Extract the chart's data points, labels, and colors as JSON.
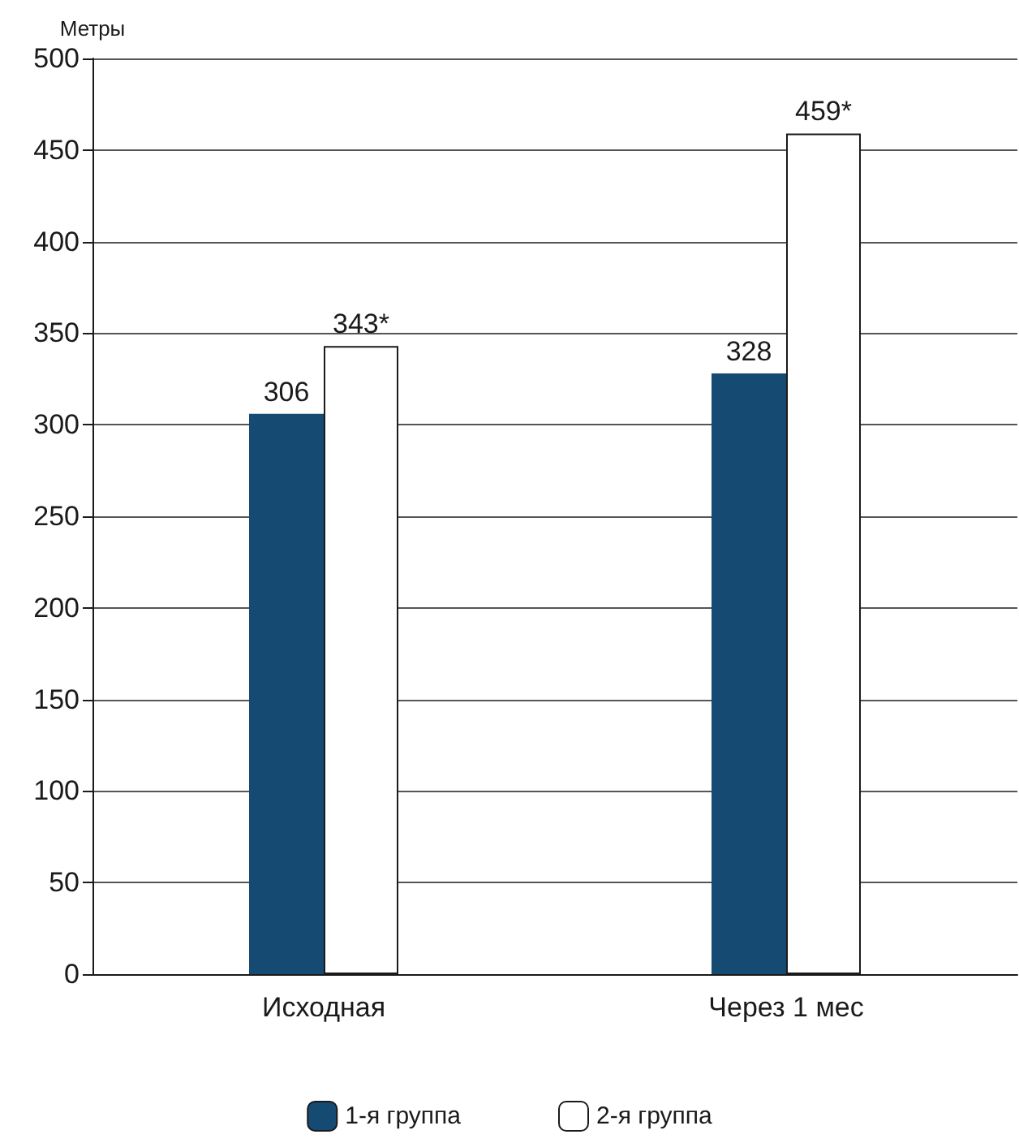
{
  "chart_data": {
    "type": "bar",
    "ylabel": "Метры",
    "categories": [
      "Исходная",
      "Через 1 мес"
    ],
    "series": [
      {
        "name": "1-я группа",
        "color": "#154a72",
        "values": [
          306,
          328
        ],
        "value_labels": [
          "306",
          "328"
        ]
      },
      {
        "name": "2-я группа",
        "color": "#ffffff",
        "values": [
          343,
          459
        ],
        "value_labels": [
          "343*",
          "459*"
        ]
      }
    ],
    "ylim": [
      0,
      500
    ],
    "yticks": [
      0,
      50,
      100,
      150,
      200,
      250,
      300,
      350,
      400,
      450,
      500
    ],
    "grid": "y",
    "legend": "bottom"
  }
}
